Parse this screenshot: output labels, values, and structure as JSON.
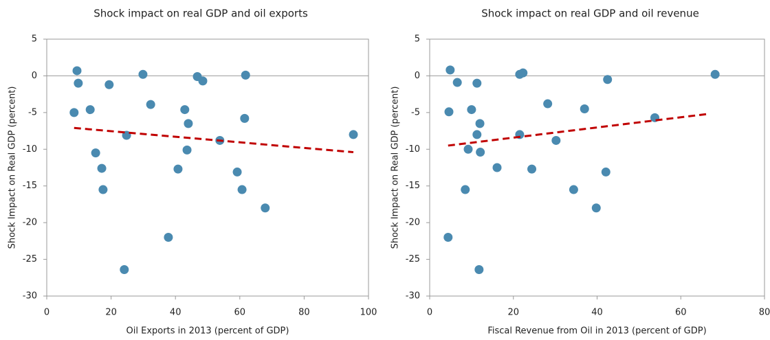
{
  "chart_data": [
    {
      "type": "scatter",
      "title": "Shock impact on real GDP and oil exports",
      "x_label": "Oil Exports in 2013 (percent of GDP)",
      "y_label": "Shock Impact on Real GDP (percent)",
      "color": "#4a8ab0",
      "x": [
        8.5,
        9.4,
        9.8,
        13.5,
        15.2,
        17.1,
        17.5,
        19.4,
        24.8,
        24.1,
        29.9,
        32.3,
        37.8,
        40.8,
        42.9,
        44.0,
        43.6,
        46.8,
        48.5,
        53.8,
        59.2,
        60.7,
        61.5,
        61.8,
        67.9,
        95.3
      ],
      "values": [
        -5.0,
        0.7,
        -1.0,
        -4.6,
        -10.5,
        -12.6,
        -15.5,
        -1.2,
        -8.1,
        -26.4,
        0.2,
        -3.9,
        -22.0,
        -12.7,
        -4.6,
        -6.5,
        -10.1,
        -0.1,
        -0.7,
        -8.8,
        -13.1,
        -15.5,
        -5.8,
        0.1,
        -18.0,
        -8.0
      ],
      "trendline": {
        "color": "#c00000",
        "x": [
          8.5,
          95.3
        ],
        "values": [
          -7.1,
          -10.4
        ]
      },
      "xlim": [
        0,
        100
      ],
      "xticks": [
        0,
        20,
        40,
        60,
        80,
        100
      ],
      "ylim": [
        -30,
        5
      ],
      "yticks": [
        -30,
        -25,
        -20,
        -15,
        -10,
        -5,
        0,
        5
      ]
    },
    {
      "type": "scatter",
      "title": "Shock impact on real GDP and oil revenue",
      "x_label": "Fiscal Revenue from Oil in 2013 (percent of GDP)",
      "y_label": "Shock Impact on Real GDP (percent)",
      "color": "#4a8ab0",
      "x": [
        4.9,
        4.6,
        4.4,
        6.6,
        8.5,
        9.2,
        10.0,
        11.3,
        11.3,
        12.1,
        11.8,
        12.0,
        16.1,
        21.5,
        22.3,
        21.5,
        24.4,
        28.2,
        30.2,
        34.4,
        37.0,
        39.8,
        42.1,
        42.5,
        53.8,
        68.2
      ],
      "values": [
        0.8,
        -4.9,
        -22.0,
        -0.9,
        -15.5,
        -10.0,
        -4.6,
        -1.0,
        -8.0,
        -10.4,
        -26.4,
        -6.5,
        -12.5,
        0.2,
        0.4,
        -8.0,
        -12.7,
        -3.8,
        -8.8,
        -15.5,
        -4.5,
        -18.0,
        -13.1,
        -0.5,
        -5.7,
        0.2
      ],
      "trendline": {
        "color": "#c00000",
        "x": [
          4.4,
          66.4
        ],
        "values": [
          -9.5,
          -5.2
        ]
      },
      "xlim": [
        0,
        80
      ],
      "xticks": [
        0,
        20,
        40,
        60,
        80
      ],
      "ylim": [
        -30,
        5
      ],
      "yticks": [
        -30,
        -25,
        -20,
        -15,
        -10,
        -5,
        0,
        5
      ]
    }
  ]
}
